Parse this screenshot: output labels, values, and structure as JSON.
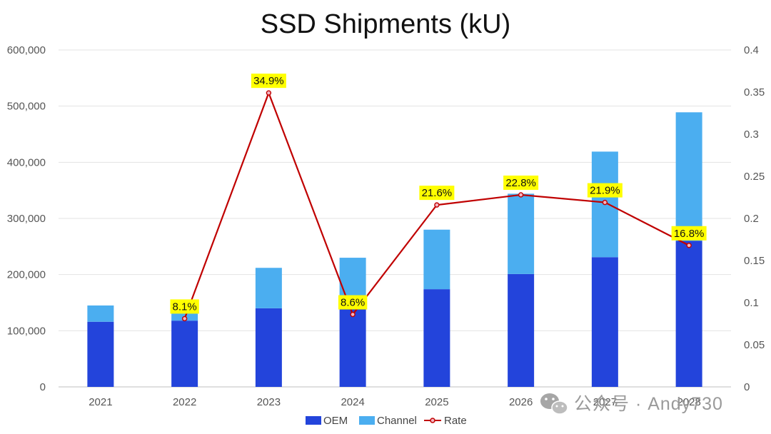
{
  "chart_data": {
    "type": "bar",
    "title": "SSD Shipments (kU)",
    "categories": [
      "2021",
      "2022",
      "2023",
      "2024",
      "2025",
      "2026",
      "2027",
      "2028"
    ],
    "series": [
      {
        "name": "OEM",
        "kind": "bar",
        "stack": true,
        "color": "#2344db",
        "values": [
          116000,
          118000,
          140000,
          140000,
          174000,
          201000,
          231000,
          260000
        ]
      },
      {
        "name": "Channel",
        "kind": "bar",
        "stack": true,
        "color": "#4baef0",
        "values": [
          29000,
          36000,
          72000,
          90000,
          106000,
          143000,
          188000,
          229000
        ]
      },
      {
        "name": "Rate",
        "kind": "line",
        "axis": "right",
        "color": "#c00000",
        "values": [
          null,
          0.081,
          0.349,
          0.086,
          0.216,
          0.228,
          0.219,
          0.168
        ],
        "labels": [
          "",
          "8.1%",
          "34.9%",
          "8.6%",
          "21.6%",
          "22.8%",
          "21.9%",
          "16.8%"
        ]
      }
    ],
    "y_left": {
      "min": 0,
      "max": 600000,
      "ticks": [
        0,
        100000,
        200000,
        300000,
        400000,
        500000,
        600000
      ],
      "tick_labels": [
        "0",
        "100,000",
        "200,000",
        "300,000",
        "400,000",
        "500,000",
        "600,000"
      ]
    },
    "y_right": {
      "min": 0,
      "max": 0.4,
      "ticks": [
        0,
        0.05,
        0.1,
        0.15,
        0.2,
        0.25,
        0.3,
        0.35,
        0.4
      ],
      "tick_labels": [
        "0",
        "0.05",
        "0.1",
        "0.15",
        "0.2",
        "0.25",
        "0.3",
        "0.35",
        "0.4"
      ]
    },
    "label_highlight_color": "#ffff00",
    "legend": {
      "position": "bottom",
      "items": [
        "OEM",
        "Channel",
        "Rate"
      ]
    },
    "grid": true
  },
  "watermark": {
    "text": "公众号 · Andy730",
    "icon": "wechat-icon"
  }
}
